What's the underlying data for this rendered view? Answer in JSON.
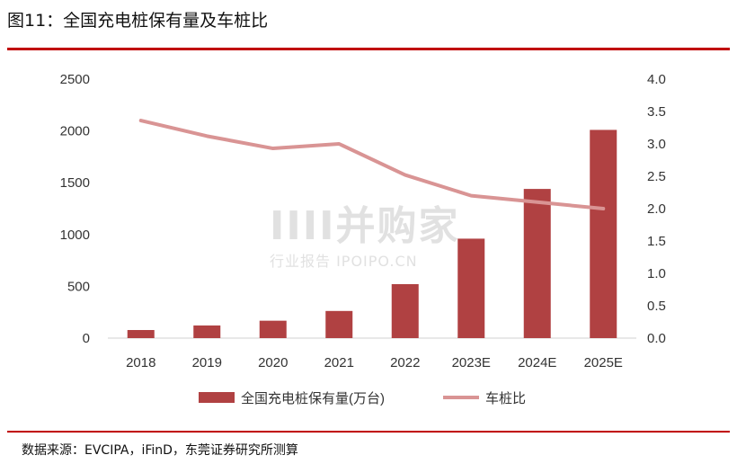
{
  "header": {
    "title": "图11：全国充电桩保有量及车桩比"
  },
  "footer": {
    "source": "数据来源：EVCIPA，iFinD，东莞证券研究所测算"
  },
  "watermark": {
    "main": "IIII并购家",
    "sub": "行业报告 IPOIPO.CN"
  },
  "colors": {
    "bar": "#b04142",
    "line": "#d99494",
    "rule": "#c00000"
  },
  "chart_data": {
    "type": "bar",
    "categories": [
      "2018",
      "2019",
      "2020",
      "2021",
      "2022",
      "2023E",
      "2024E",
      "2025E"
    ],
    "series": [
      {
        "name": "全国充电桩保有量(万台)",
        "type": "bar",
        "axis": "left",
        "values": [
          78,
          122,
          168,
          262,
          521,
          960,
          1440,
          2010
        ]
      },
      {
        "name": "车桩比",
        "type": "line",
        "axis": "right",
        "values": [
          3.36,
          3.12,
          2.93,
          3.0,
          2.52,
          2.2,
          2.1,
          2.0
        ]
      }
    ],
    "y_left": {
      "min": 0,
      "max": 2500,
      "ticks": [
        "0",
        "500",
        "1000",
        "1500",
        "2000",
        "2500"
      ]
    },
    "y_right": {
      "min": 0,
      "max": 4.0,
      "ticks": [
        "0.0",
        "0.5",
        "1.0",
        "1.5",
        "2.0",
        "2.5",
        "3.0",
        "3.5",
        "4.0"
      ]
    },
    "legend": "bottom",
    "grid": false
  }
}
